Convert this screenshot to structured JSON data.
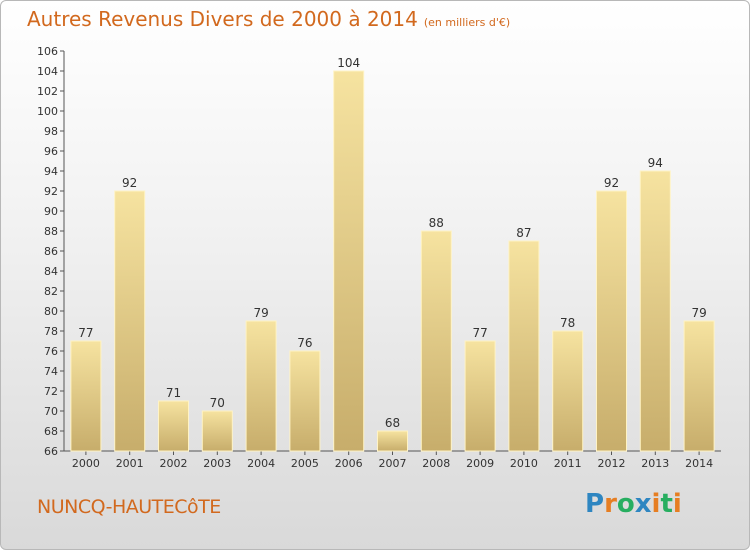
{
  "header": {
    "title": "Autres Revenus Divers de 2000 à 2014",
    "subtitle": "(en milliers d'€)"
  },
  "footer": {
    "commune": "NUNCQ-HAUTECôTE",
    "logo_text": "Proxiti"
  },
  "colors": {
    "accent": "#d2691e",
    "bar_light": "#f6e3a0",
    "bar_dark": "#c7ad6b",
    "logo": [
      "#2e86c1",
      "#e67e22",
      "#27ae60",
      "#2e86c1",
      "#e67e22",
      "#27ae60",
      "#e67e22"
    ]
  },
  "chart_data": {
    "type": "bar",
    "categories": [
      "2000",
      "2001",
      "2002",
      "2003",
      "2004",
      "2005",
      "2006",
      "2007",
      "2008",
      "2009",
      "2010",
      "2011",
      "2012",
      "2013",
      "2014"
    ],
    "values": [
      77,
      92,
      71,
      70,
      79,
      76,
      104,
      68,
      88,
      77,
      87,
      78,
      92,
      94,
      79
    ],
    "title": "Autres Revenus Divers de 2000 à 2014",
    "ylim": [
      66,
      106
    ],
    "yticks": [
      66,
      68,
      70,
      72,
      74,
      76,
      78,
      80,
      82,
      84,
      86,
      88,
      90,
      92,
      94,
      96,
      98,
      100,
      102,
      104,
      106
    ],
    "grid": false,
    "legend": "none"
  }
}
